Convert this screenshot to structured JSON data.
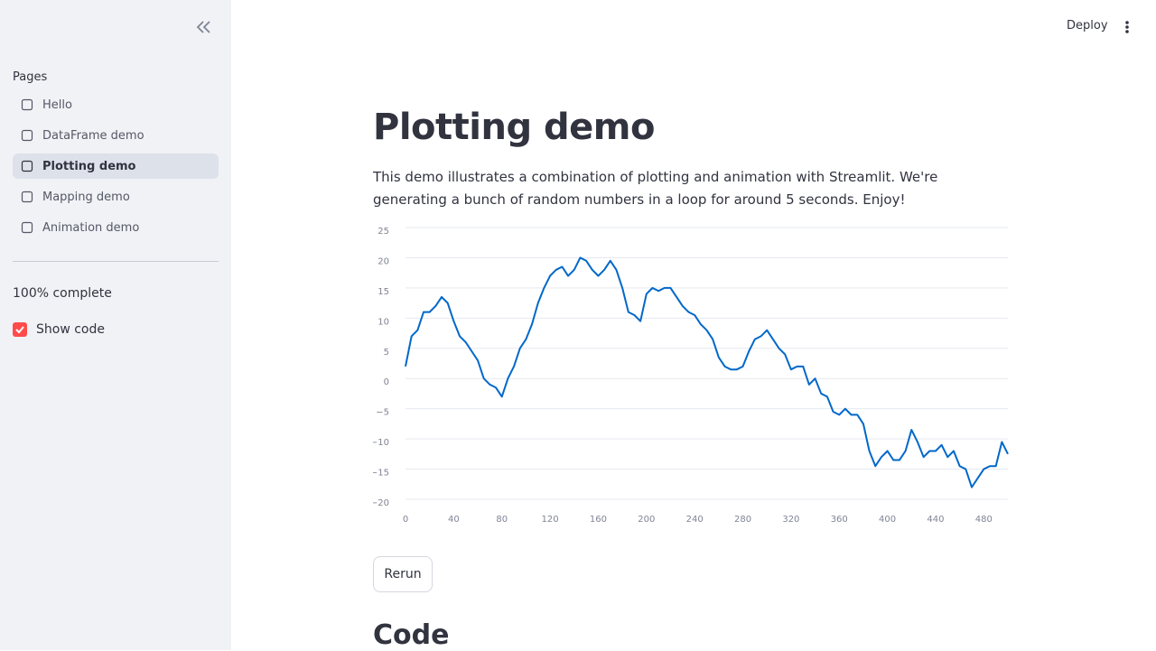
{
  "sidebar": {
    "section_label": "Pages",
    "pages": [
      "Hello",
      "DataFrame demo",
      "Plotting demo",
      "Mapping demo",
      "Animation demo"
    ],
    "active_page": 2,
    "progress_text": "100% complete",
    "checkbox_label": "Show code"
  },
  "header": {
    "deploy": "Deploy"
  },
  "main": {
    "title": "Plotting demo",
    "description": "This demo illustrates a combination of plotting and animation with Streamlit. We're generating a bunch of random numbers in a loop for around 5 seconds. Enjoy!",
    "button": "Rerun",
    "code_heading": "Code"
  },
  "chart_data": {
    "type": "line",
    "color": "#0068c9",
    "grid": true,
    "x": [
      0,
      5,
      10,
      15,
      20,
      25,
      30,
      35,
      40,
      45,
      50,
      55,
      60,
      65,
      70,
      75,
      80,
      85,
      90,
      95,
      100,
      105,
      110,
      115,
      120,
      125,
      130,
      135,
      140,
      145,
      150,
      155,
      160,
      165,
      170,
      175,
      180,
      185,
      190,
      195,
      200,
      205,
      210,
      215,
      220,
      225,
      230,
      235,
      240,
      245,
      250,
      255,
      260,
      265,
      270,
      275,
      280,
      285,
      290,
      295,
      300,
      305,
      310,
      315,
      320,
      325,
      330,
      335,
      340,
      345,
      350,
      355,
      360,
      365,
      370,
      375,
      380,
      385,
      390,
      395,
      400,
      405,
      410,
      415,
      420,
      425,
      430,
      435,
      440,
      445,
      450,
      455,
      460,
      465,
      470,
      475,
      480,
      485,
      490,
      495,
      500
    ],
    "values": [
      2,
      7,
      8,
      11,
      11,
      12,
      13.5,
      12.5,
      9.5,
      7,
      6,
      4.5,
      3,
      0,
      -1,
      -1.5,
      -3,
      0,
      2,
      5,
      6.5,
      9,
      12.5,
      15,
      17,
      18,
      18.5,
      17,
      18,
      20,
      19.5,
      18,
      17,
      18,
      19.5,
      18,
      15,
      11,
      10.5,
      9.5,
      14,
      15,
      14.5,
      15,
      15,
      13.5,
      12,
      11,
      10.5,
      9,
      8,
      6.5,
      3.5,
      2,
      1.5,
      1.5,
      2,
      4.5,
      6.5,
      7,
      8,
      6.5,
      5,
      4,
      1.5,
      2,
      2,
      -1,
      0,
      -2.5,
      -3,
      -5.5,
      -6,
      -5,
      -6,
      -6,
      -7.5,
      -12,
      -14.5,
      -13,
      -12,
      -13.5,
      -13.5,
      -12,
      -8.5,
      -10.5,
      -13,
      -12,
      -12,
      -11,
      -13,
      -12,
      -14.5,
      -15,
      -18,
      -16.5,
      -15,
      -14.5,
      -14.5,
      -10.5,
      -12.5
    ],
    "xlim": [
      0,
      500
    ],
    "xticks": [
      0,
      40,
      80,
      120,
      160,
      200,
      240,
      280,
      320,
      360,
      400,
      440,
      480
    ],
    "ylim": [
      -20,
      25
    ],
    "yticks": [
      {
        "value": -20,
        "label": "−20"
      },
      {
        "value": -15,
        "label": "−15"
      },
      {
        "value": -10,
        "label": "−10"
      },
      {
        "value": -5,
        "label": "−5"
      },
      0,
      5,
      10,
      15,
      20,
      25
    ]
  }
}
